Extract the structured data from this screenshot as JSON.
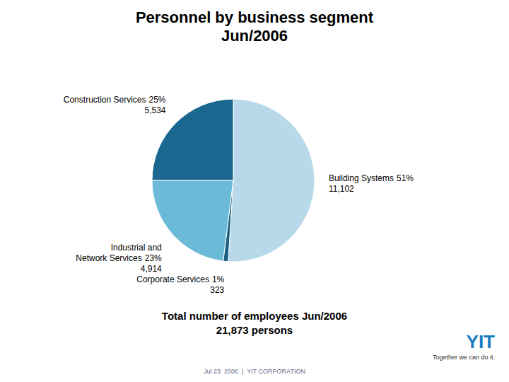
{
  "chart_data": {
    "type": "pie",
    "title": "Personnel by business segment\nJun/2006",
    "categories": [
      "Building Systems",
      "Corporate Services",
      "Industrial and\nNetwork Services",
      "Construction Services"
    ],
    "values": [
      51,
      1,
      23,
      25
    ],
    "value_labels": [
      "51%",
      "1%",
      "23%",
      "25%"
    ],
    "counts": [
      11102,
      323,
      4914,
      5534
    ],
    "count_labels": [
      "11,102",
      "323",
      "4,914",
      "5,534"
    ],
    "colors": [
      "#b8d9ea",
      "#1e6080",
      "#6bbbd8",
      "#1a6890"
    ],
    "annotations": [
      "Total number of employees Jun/2006\n21,873 persons",
      "Jul 23  2006  |  YIT CORPORATION",
      "YIT",
      "Together we can do it."
    ]
  }
}
